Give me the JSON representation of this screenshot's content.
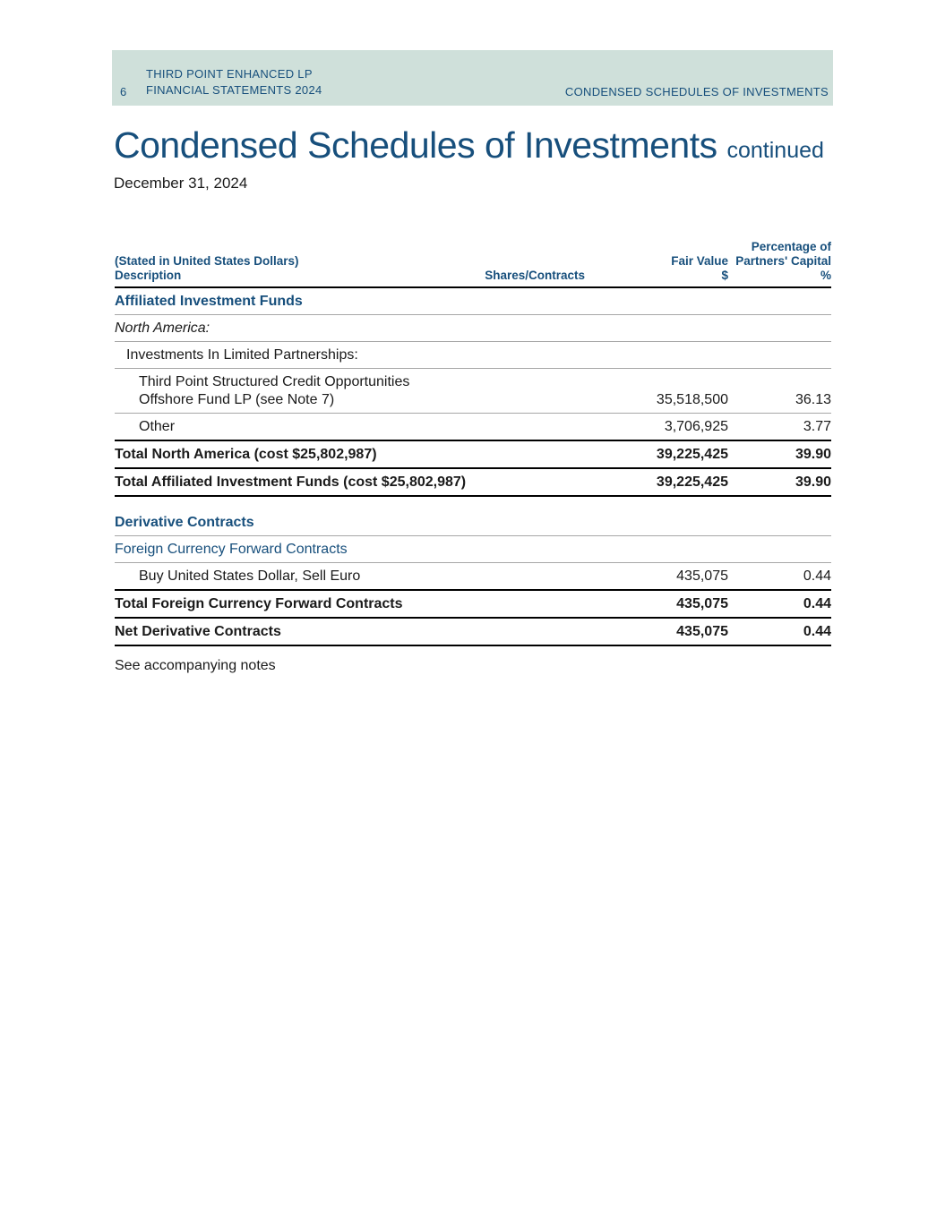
{
  "colors": {
    "accent_navy": "#174f7c",
    "band_background": "#cfe0da",
    "separator_gray": "#a6a6a6",
    "rule_black": "#000000"
  },
  "band": {
    "page_number": "6",
    "line1": "THIRD POINT ENHANCED LP",
    "line2": "FINANCIAL STATEMENTS 2024",
    "right_text": "CONDENSED SCHEDULES OF INVESTMENTS"
  },
  "title": {
    "main": "Condensed Schedules of Investments",
    "suffix": "continued",
    "date": "December 31, 2024"
  },
  "table": {
    "header": {
      "stated_in": "(Stated in United States Dollars)",
      "description": "Description",
      "shares_contracts": "Shares/Contracts",
      "fair_value": "Fair Value",
      "fair_value_symbol": "$",
      "pct_line1": "Percentage of",
      "pct_line2": "Partners' Capital",
      "pct_symbol": "%"
    },
    "rows": [
      {
        "desc": "Affiliated Investment Funds",
        "fair_value": "",
        "pct": ""
      },
      {
        "desc": "North America:",
        "fair_value": "",
        "pct": ""
      },
      {
        "desc": "Investments In Limited Partnerships:",
        "fair_value": "",
        "pct": ""
      },
      {
        "desc": "Third Point Structured Credit Opportunities",
        "desc2": "Offshore Fund LP (see Note 7)",
        "fair_value": "35,518,500",
        "pct": "36.13"
      },
      {
        "desc": "Other",
        "fair_value": "3,706,925",
        "pct": "3.77"
      },
      {
        "desc": "Total North America (cost $25,802,987)",
        "fair_value": "39,225,425",
        "pct": "39.90"
      },
      {
        "desc": "Total Affiliated Investment Funds (cost $25,802,987)",
        "fair_value": "39,225,425",
        "pct": "39.90"
      },
      {
        "desc": "Derivative Contracts",
        "fair_value": "",
        "pct": ""
      },
      {
        "desc": "Foreign Currency Forward Contracts",
        "fair_value": "",
        "pct": ""
      },
      {
        "desc": "Buy United States Dollar, Sell Euro",
        "fair_value": "435,075",
        "pct": "0.44"
      },
      {
        "desc": "Total Foreign Currency Forward Contracts",
        "fair_value": "435,075",
        "pct": "0.44"
      },
      {
        "desc": "Net Derivative Contracts",
        "fair_value": "435,075",
        "pct": "0.44"
      }
    ]
  },
  "footer": {
    "note": "See accompanying notes"
  }
}
